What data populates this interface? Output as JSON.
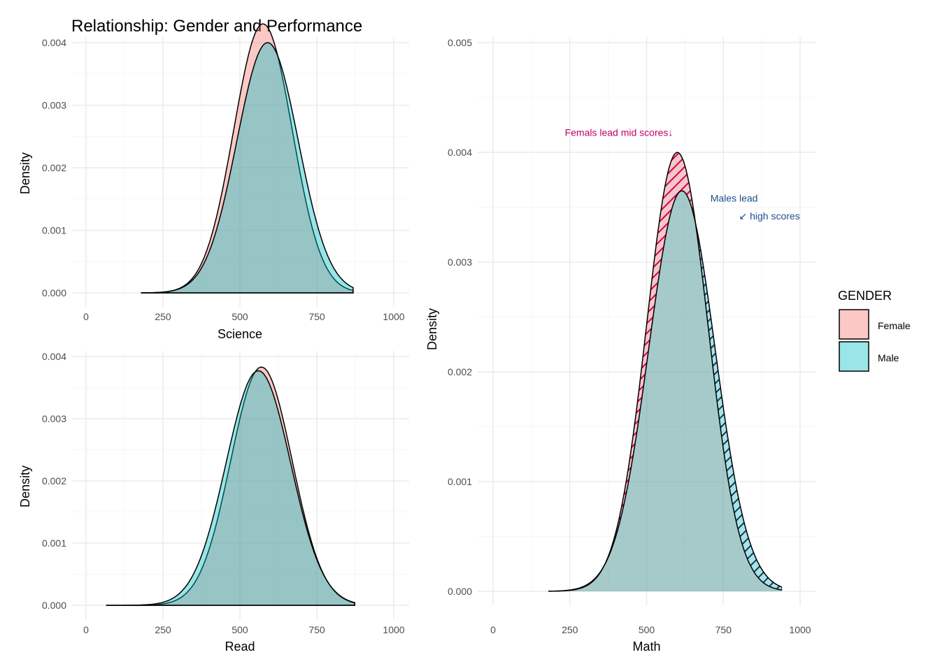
{
  "figure": {
    "title": "Relationship: Gender and Performance"
  },
  "legend": {
    "title": "GENDER",
    "items": [
      {
        "label": "Female",
        "color": "#f8766d"
      },
      {
        "label": "Male",
        "color": "#00bfc4"
      }
    ],
    "placement": "right"
  },
  "chart_data": [
    {
      "type": "area",
      "subtype": "density",
      "panel": "science",
      "xlabel": "Science",
      "ylabel": "Density",
      "xlim": [
        0,
        1000
      ],
      "ylim": [
        0,
        0.0043
      ],
      "xticks": [
        0,
        250,
        500,
        750,
        1000
      ],
      "yticks": [
        0.0,
        0.001,
        0.002,
        0.003,
        0.004
      ],
      "ytick_labels": [
        "0.000",
        "0.001",
        "0.002",
        "0.003",
        "0.004"
      ],
      "grid": true,
      "series": [
        {
          "name": "Female",
          "mean": 575,
          "sd": 95,
          "peak": 0.0043,
          "range": [
            180,
            870
          ]
        },
        {
          "name": "Male",
          "mean": 590,
          "sd": 100,
          "peak": 0.004,
          "range": [
            180,
            870
          ]
        }
      ]
    },
    {
      "type": "area",
      "subtype": "density",
      "panel": "read",
      "xlabel": "Read",
      "ylabel": "Density",
      "xlim": [
        0,
        1000
      ],
      "ylim": [
        0,
        0.004
      ],
      "xticks": [
        0,
        250,
        500,
        750,
        1000
      ],
      "yticks": [
        0.0,
        0.001,
        0.002,
        0.003,
        0.004
      ],
      "ytick_labels": [
        "0.000",
        "0.001",
        "0.002",
        "0.003",
        "0.004"
      ],
      "grid": true,
      "series": [
        {
          "name": "Female",
          "mean": 570,
          "sd": 100,
          "peak": 0.00383,
          "range": [
            65,
            875
          ]
        },
        {
          "name": "Male",
          "mean": 560,
          "sd": 105,
          "peak": 0.00377,
          "range": [
            65,
            875
          ]
        }
      ]
    },
    {
      "type": "area",
      "subtype": "density",
      "panel": "math",
      "xlabel": "Math",
      "ylabel": "Density",
      "xlim": [
        0,
        1000
      ],
      "ylim": [
        0,
        0.005
      ],
      "xticks": [
        0,
        250,
        500,
        750,
        1000
      ],
      "yticks": [
        0.0,
        0.001,
        0.002,
        0.003,
        0.004,
        0.005
      ],
      "ytick_labels": [
        "0.000",
        "0.001",
        "0.002",
        "0.003",
        "0.004",
        "0.005"
      ],
      "grid": true,
      "series": [
        {
          "name": "Female",
          "mean": 600,
          "sd": 100,
          "peak": 0.004,
          "range": [
            180,
            940
          ]
        },
        {
          "name": "Male",
          "mean": 615,
          "sd": 108,
          "peak": 0.00365,
          "range": [
            180,
            940
          ]
        }
      ],
      "annotations": [
        {
          "text": "Femals lead mid scores↓",
          "x": 410,
          "y": 0.00415,
          "color": "#c0006a"
        },
        {
          "text": "Males lead",
          "x": 785,
          "y": 0.00355,
          "color": "#1f4e8c"
        },
        {
          "text": "↙ high scores",
          "x": 900,
          "y": 0.00339,
          "color": "#1f4e8c"
        }
      ]
    }
  ]
}
